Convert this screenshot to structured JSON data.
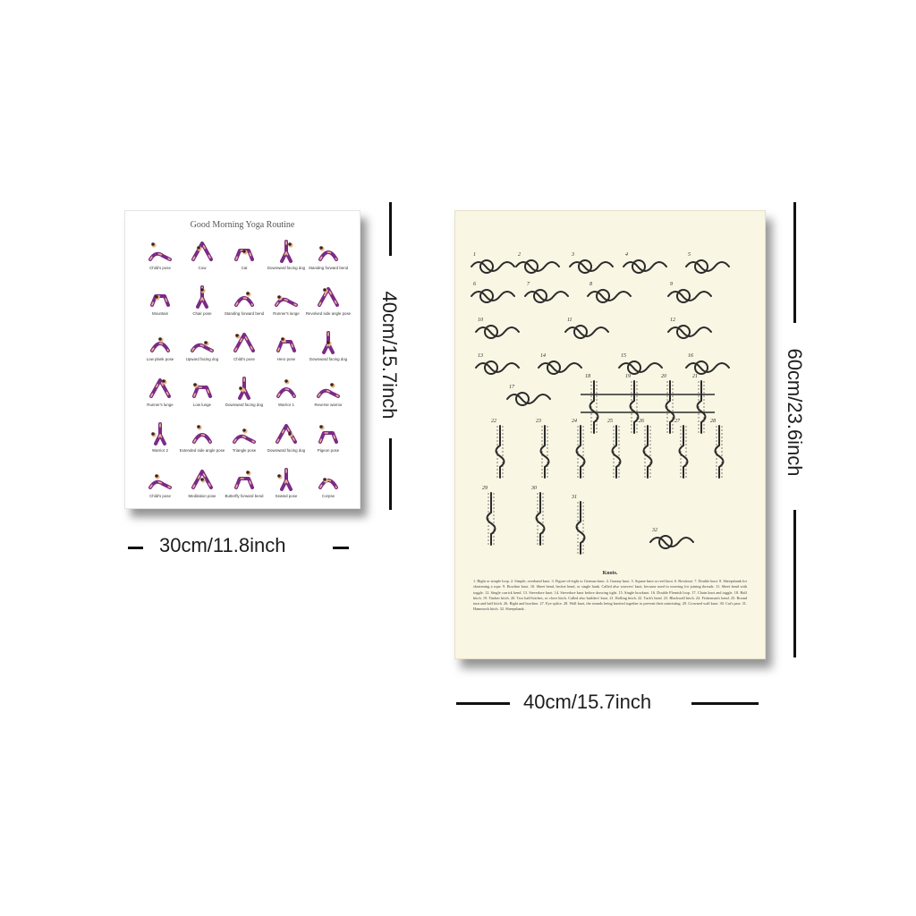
{
  "yoga_poster": {
    "title": "Good Morning Yoga Routine",
    "poses": [
      "Child's pose",
      "Cow",
      "Cat",
      "Downward facing dog",
      "Standing forward bend",
      "Mountain",
      "Chair pose",
      "Standing forward bend",
      "Runner's lunge",
      "Revolved side angle pose",
      "Low plank pose",
      "Upward facing dog",
      "Child's pose",
      "Hero pose",
      "Downward facing dog",
      "Runner's lunge",
      "Low lunge",
      "Downward facing dog",
      "Warrior 1",
      "Reverse warrior",
      "Warrior 2",
      "Extended side angle pose",
      "Triangle pose",
      "Downward facing dog",
      "Pigeon pose",
      "Child's pose",
      "Meditation pose",
      "Butterfly forward bend",
      "Seated pose",
      "Corpse"
    ],
    "colors": {
      "outfit": "#7b2a86",
      "skin": "#e9b88c",
      "hair": "#3b2418"
    }
  },
  "knots_poster": {
    "caption": "Knots.",
    "legend": "1. Bight or simple loop. 2. Simple, overhand knot. 3. Figure-of-eight or German knot. 4. Granny knot. 5. Square knot or reef knot. 6. Bowknot. 7. Double knot. 8. Sheepshank for shortening a rope. 9. Bowline knot. 10. Sheet bend, becket bend, or single hank. Called also weavers' knot, because used in weaving for joining threads. 11. Sheet bend with toggle. 12. Single carrick bend. 13. Stevedore knot. 14. Stevedore knot before drawing tight. 15. Single bowknot. 16. Double Flemish loop. 17. Chain knot and toggle. 18. Half hitch. 19. Timber hitch. 20. Two half-hitches, or clove hitch. Called also builders' knot. 21. Rolling hitch. 22. Turk's head. 23. Blackwall hitch. 24. Fisherman's bend. 25. Round turn and half hitch. 26. Bight and bowline. 27. Eye splice. 28. Wall knot, the strands being knotted together to prevent their untwisting. 29. Crowned wall knot. 30. Cat's paw. 31. Hammock hitch. 32. Sheepshank.",
    "numbers": [
      "1",
      "2",
      "3",
      "4",
      "5",
      "6",
      "7",
      "8",
      "9",
      "10",
      "11",
      "12",
      "13",
      "14",
      "15",
      "16",
      "17",
      "18",
      "19",
      "20",
      "21",
      "22",
      "23",
      "24",
      "25",
      "26",
      "27",
      "28",
      "29",
      "30",
      "31",
      "32"
    ],
    "colors": {
      "paper": "#faf6e4",
      "ink": "#2b2b2b"
    }
  },
  "dimensions": {
    "yoga_width": "30cm/11.8inch",
    "yoga_height": "40cm/15.7inch",
    "knots_width": "40cm/15.7inch",
    "knots_height": "60cm/23.6inch"
  }
}
